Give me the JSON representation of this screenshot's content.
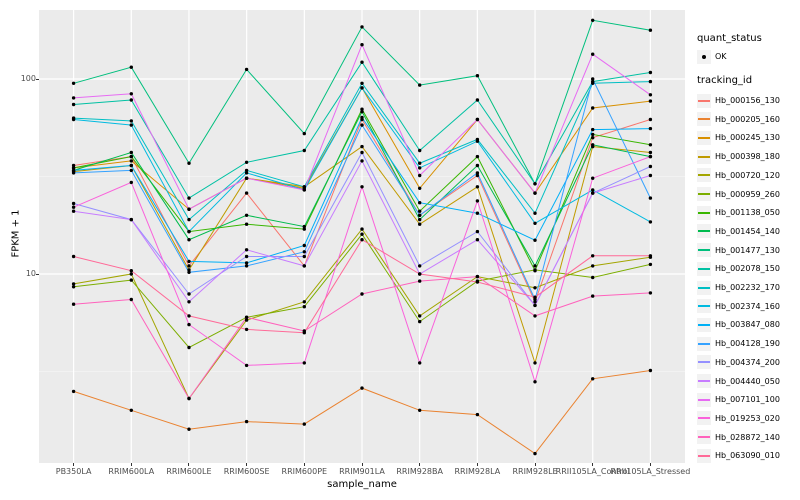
{
  "chart_data": {
    "type": "line",
    "title": "",
    "xlabel": "sample_name",
    "ylabel": "FPKM + 1",
    "yscale": "log10",
    "yticks": [
      100,
      10
    ],
    "ytick_labels": [
      "100",
      "10"
    ],
    "minor_gridlines": [
      31.62,
      3.162
    ],
    "ylim": [
      1.05,
      225
    ],
    "grid": true,
    "legend_position": "right",
    "x_categories": [
      "PB350LA",
      "RRIM600LA",
      "RRIM600LE",
      "RRIM600SE",
      "RRIM600PE",
      "RRIM901LA",
      "RRIM928BA",
      "RRIM928LA",
      "RRIM928LE",
      "RRII105LA_Control",
      "RRII105LA_Stressed"
    ],
    "point_color": "#000000",
    "series": [
      {
        "name": "Hb_000156_130",
        "color": "#F8766D",
        "values": [
          36,
          40,
          11,
          26,
          11,
          62,
          20,
          32,
          7.2,
          50,
          62
        ]
      },
      {
        "name": "Hb_000205_160",
        "color": "#EA8331",
        "values": [
          2.5,
          2.0,
          1.6,
          1.75,
          1.7,
          2.6,
          2.0,
          1.9,
          1.2,
          2.9,
          3.2
        ]
      },
      {
        "name": "Hb_000245_130",
        "color": "#D89000",
        "values": [
          35,
          38,
          21.5,
          31,
          27.5,
          90,
          27.5,
          62,
          26,
          71,
          77
        ]
      },
      {
        "name": "Hb_000398_180",
        "color": "#C09B00",
        "values": [
          33.5,
          36,
          10.5,
          31,
          28,
          45,
          18,
          28,
          3.5,
          45,
          42
        ]
      },
      {
        "name": "Hb_000720_120",
        "color": "#A3A500",
        "values": [
          8.9,
          10,
          2.3,
          5.8,
          7.2,
          17,
          6.1,
          9.7,
          8.5,
          11,
          12.2
        ]
      },
      {
        "name": "Hb_000959_260",
        "color": "#7CAE00",
        "values": [
          8.6,
          9.3,
          4.2,
          6.0,
          6.8,
          16,
          5.7,
          9.2,
          10.5,
          9.6,
          11.2
        ]
      },
      {
        "name": "Hb_001138_050",
        "color": "#39B600",
        "values": [
          35,
          40,
          16.5,
          18,
          17,
          70,
          21,
          40,
          10.4,
          52,
          46
        ]
      },
      {
        "name": "Hb_001454_140",
        "color": "#00BB4E",
        "values": [
          34,
          42,
          15,
          20,
          17.5,
          68,
          19,
          36,
          11,
          46,
          40
        ]
      },
      {
        "name": "Hb_001477_130",
        "color": "#00BF7D",
        "values": [
          95,
          115,
          37,
          112,
          52.5,
          185,
          93,
          104,
          29,
          200,
          178
        ]
      },
      {
        "name": "Hb_002078_150",
        "color": "#00C1A3",
        "values": [
          74,
          78,
          24.5,
          37.4,
          43,
          122,
          43,
          78,
          29,
          97,
          108
        ]
      },
      {
        "name": "Hb_002232_170",
        "color": "#00BFC4",
        "values": [
          63,
          61,
          19,
          34,
          28,
          95,
          37,
          49,
          20.5,
          95,
          97
        ]
      },
      {
        "name": "Hb_002374_160",
        "color": "#00BAE0",
        "values": [
          62,
          58,
          16.5,
          33,
          27,
          90,
          35,
          48,
          18.2,
          27,
          18.5
        ]
      },
      {
        "name": "Hb_003847_080",
        "color": "#00B0F6",
        "values": [
          34,
          36,
          11.6,
          11.4,
          14,
          63.5,
          23.2,
          20.5,
          14.9,
          55,
          55.7
        ]
      },
      {
        "name": "Hb_004128_190",
        "color": "#35A2FF",
        "values": [
          33,
          34,
          10.2,
          11,
          13,
          58,
          20,
          33,
          7.4,
          100,
          24.5
        ]
      },
      {
        "name": "Hb_004374_200",
        "color": "#9590FF",
        "values": [
          23,
          19,
          7.9,
          12.3,
          12.3,
          42,
          11,
          16.5,
          6.9,
          26,
          35.6
        ]
      },
      {
        "name": "Hb_004440_050",
        "color": "#C77CFF",
        "values": [
          21,
          19,
          7.2,
          13.3,
          11,
          38,
          10,
          15,
          6.9,
          26,
          32
        ]
      },
      {
        "name": "Hb_007101_100",
        "color": "#E76BF3",
        "values": [
          80,
          84,
          21.5,
          31,
          27,
          150,
          32,
          62,
          26,
          134,
          83
        ]
      },
      {
        "name": "Hb_019253_020",
        "color": "#FA62DB",
        "values": [
          22,
          29.5,
          5.5,
          3.4,
          3.5,
          28,
          3.5,
          23.7,
          2.8,
          31,
          40
        ]
      },
      {
        "name": "Hb_028872_140",
        "color": "#FF62BC",
        "values": [
          7.0,
          7.4,
          2.3,
          6.0,
          5.1,
          7.9,
          9.2,
          9.7,
          6.1,
          7.7,
          8.0
        ]
      },
      {
        "name": "Hb_063090_010",
        "color": "#FF6A98",
        "values": [
          12.3,
          10.4,
          6.1,
          5.2,
          5.0,
          15,
          10,
          9.1,
          7.6,
          12.4,
          12.4
        ]
      }
    ]
  },
  "axes": {
    "y_title": "FPKM + 1",
    "x_title": "sample_name"
  },
  "legend": {
    "quant_status": {
      "title": "quant_status",
      "items": [
        {
          "label": "OK",
          "symbol": "point"
        }
      ]
    },
    "tracking_id": {
      "title": "tracking_id"
    }
  },
  "colors": {
    "panel_bg": "#EBEBEB",
    "grid_major": "#FFFFFF",
    "grid_minor": "#F5F5F5",
    "tick_label": "#4D4D4D",
    "axis_title": "#000000",
    "legend_key_bg": "#F2F2F2",
    "point": "#000000"
  }
}
